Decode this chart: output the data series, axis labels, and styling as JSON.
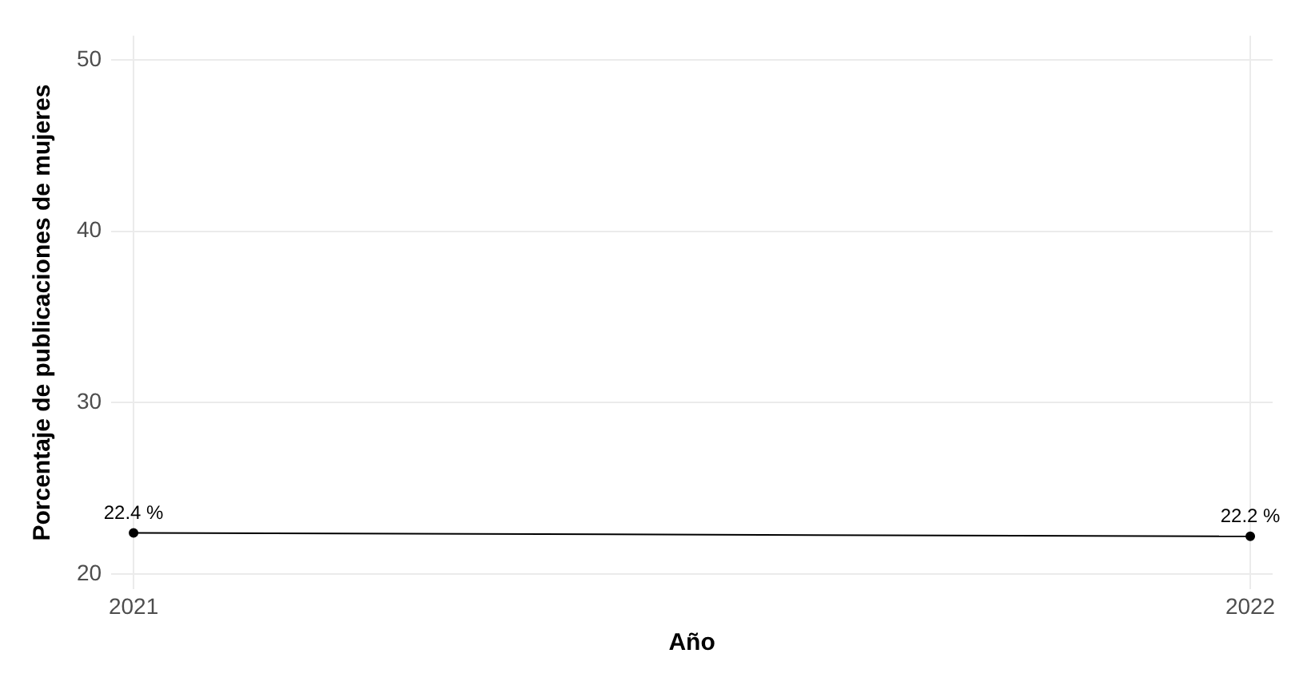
{
  "chart_data": {
    "type": "line",
    "xlabel": "Año",
    "ylabel": "Porcentaje de publicaciones de mujeres",
    "x": [
      2021,
      2022
    ],
    "series": [
      {
        "color": "#000000",
        "values": [
          22.4,
          22.2
        ],
        "value_labels": [
          "22.4 %",
          "22.2 %"
        ]
      }
    ],
    "xlim": [
      2020.98,
      2022.02
    ],
    "xticks": [
      2021,
      2022
    ],
    "ylim": [
      19.1,
      51.4
    ],
    "yticks": [
      20,
      30,
      40,
      50
    ],
    "grid": true,
    "legend": false,
    "marker": "circle",
    "line_style": "solid"
  }
}
